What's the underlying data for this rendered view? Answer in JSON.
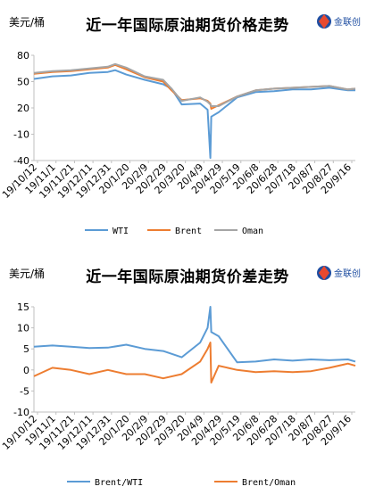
{
  "brand_text": "金联创",
  "chart_data": [
    {
      "type": "line",
      "title": "近一年国际原油期货价格走势",
      "ylabel": "美元/桶",
      "ylim": [
        -40,
        80
      ],
      "yticks": [
        -40,
        -10,
        20,
        50,
        80
      ],
      "x_tick_labels": [
        "19/10/12",
        "19/11/1",
        "19/11/21",
        "19/12/11",
        "19/12/31",
        "20/1/20",
        "20/2/9",
        "20/2/29",
        "20/3/20",
        "20/4/9",
        "20/4/29",
        "20/5/19",
        "20/6/8",
        "20/6/28",
        "20/7/18",
        "20/8/7",
        "20/8/27",
        "20/9/16"
      ],
      "x": [
        "2019-10-12",
        "2019-11-01",
        "2019-11-21",
        "2019-12-11",
        "2019-12-31",
        "2020-01-08",
        "2020-01-20",
        "2020-02-09",
        "2020-02-29",
        "2020-03-09",
        "2020-03-20",
        "2020-04-09",
        "2020-04-17",
        "2020-04-20",
        "2020-04-21",
        "2020-04-29",
        "2020-05-19",
        "2020-06-08",
        "2020-06-28",
        "2020-07-18",
        "2020-08-07",
        "2020-08-27",
        "2020-09-16",
        "2020-09-24"
      ],
      "series": [
        {
          "name": "WTI",
          "color": "#5B9BD5",
          "values": [
            53,
            56,
            57,
            60,
            61,
            63,
            58,
            52,
            47,
            42,
            24,
            25,
            18,
            -37,
            10,
            15,
            32,
            38,
            39,
            41,
            41,
            43,
            40,
            40
          ]
        },
        {
          "name": "Brent",
          "color": "#ED7D31",
          "values": [
            59,
            61,
            62,
            64,
            66,
            69,
            64,
            55,
            50,
            40,
            29,
            31,
            28,
            25,
            19,
            23,
            33,
            40,
            42,
            43,
            44,
            45,
            41,
            42
          ]
        },
        {
          "name": "Oman",
          "color": "#A5A5A5",
          "values": [
            60,
            62,
            63,
            65,
            67,
            70,
            66,
            56,
            52,
            42,
            28,
            32,
            27,
            24,
            22,
            22,
            33,
            40,
            42,
            43,
            44,
            45,
            41,
            42
          ]
        }
      ],
      "legend": [
        "WTI",
        "Brent",
        "Oman"
      ],
      "legend_position": "bottom"
    },
    {
      "type": "line",
      "title": "近一年国际原油期货价差走势",
      "ylabel": "美元/桶",
      "ylim": [
        -10,
        15
      ],
      "yticks": [
        -10,
        -5,
        0,
        5,
        10,
        15
      ],
      "x_tick_labels": [
        "19/10/12",
        "19/11/1",
        "19/11/21",
        "19/12/11",
        "19/12/31",
        "20/1/20",
        "20/2/9",
        "20/2/29",
        "20/3/20",
        "20/4/9",
        "20/4/29",
        "20/5/19",
        "20/6/8",
        "20/6/28",
        "20/7/18",
        "20/8/7",
        "20/8/27",
        "20/9/16"
      ],
      "x": [
        "2019-10-12",
        "2019-11-01",
        "2019-11-21",
        "2019-12-11",
        "2019-12-31",
        "2020-01-20",
        "2020-02-09",
        "2020-02-29",
        "2020-03-20",
        "2020-04-09",
        "2020-04-17",
        "2020-04-20",
        "2020-04-21",
        "2020-04-29",
        "2020-05-19",
        "2020-06-08",
        "2020-06-28",
        "2020-07-18",
        "2020-08-07",
        "2020-08-27",
        "2020-09-16",
        "2020-09-24"
      ],
      "series": [
        {
          "name": "Brent/WTI",
          "color": "#5B9BD5",
          "values": [
            5.5,
            5.8,
            5.5,
            5.2,
            5.3,
            6.0,
            5.0,
            4.5,
            3.0,
            6.5,
            10,
            15,
            9,
            8,
            1.8,
            2.0,
            2.5,
            2.2,
            2.5,
            2.3,
            2.5,
            2.0
          ]
        },
        {
          "name": "Brent/Oman",
          "color": "#ED7D31",
          "values": [
            -1.5,
            0.5,
            0,
            -1,
            0,
            -1,
            -1,
            -2,
            -1,
            2,
            5,
            6.5,
            -3,
            1,
            0,
            -0.5,
            -0.3,
            -0.5,
            -0.3,
            0.5,
            1.5,
            1.0
          ]
        }
      ],
      "legend": [
        "Brent/WTI",
        "Brent/Oman"
      ],
      "legend_position": "bottom"
    }
  ]
}
